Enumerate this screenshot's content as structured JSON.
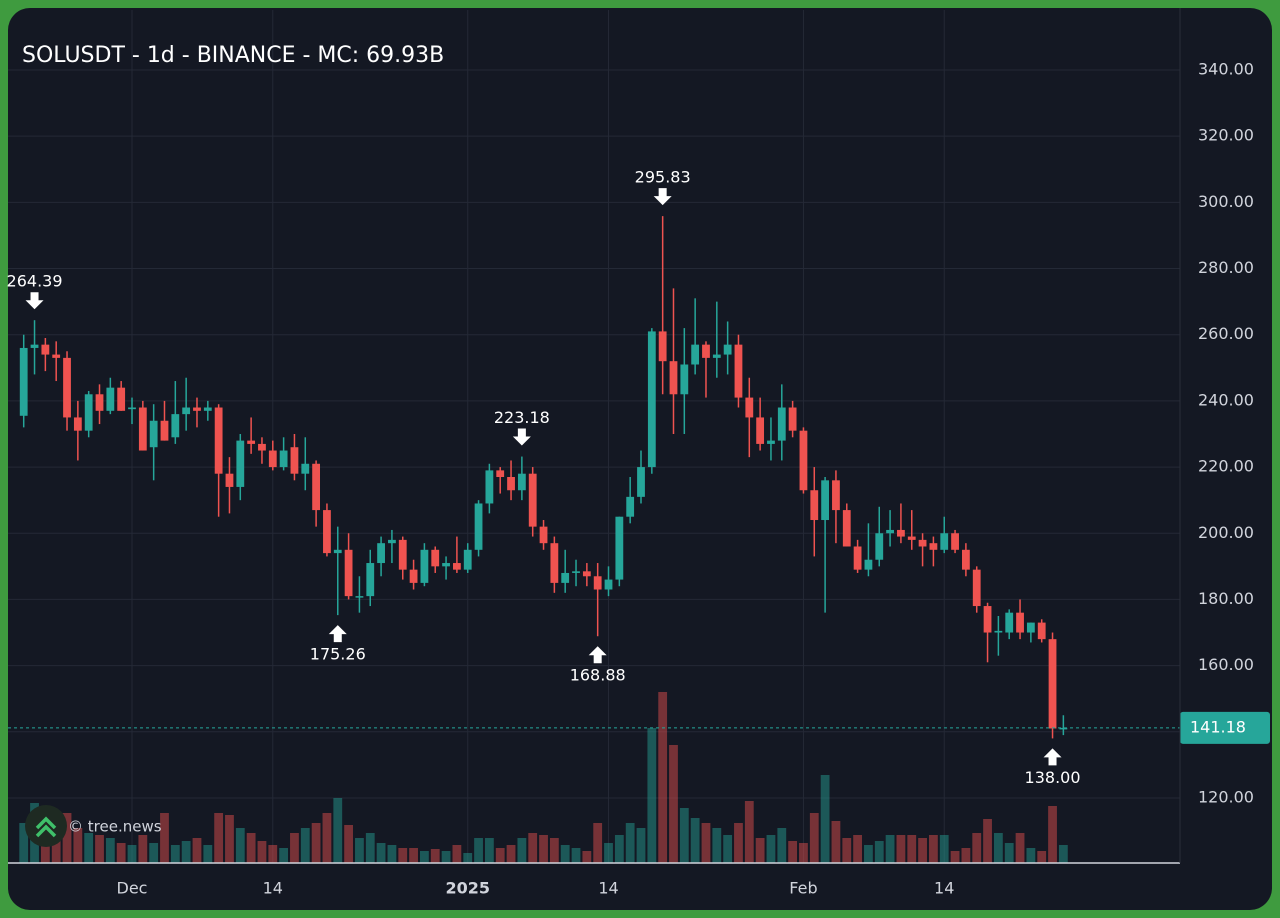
{
  "chart_data": {
    "type": "candlestick",
    "title": "SOLUSDT - 1d - BINANCE - MC: 69.93B",
    "watermark": "© tree.news",
    "up_color": "#26a69a",
    "down_color": "#ef5350",
    "grid": true,
    "xlim": [
      -1.45,
      106.77
    ],
    "ylim": [
      100.35,
      358.13
    ],
    "xticks": [
      {
        "value": 10,
        "label": "Dec"
      },
      {
        "value": 23,
        "label": "14"
      },
      {
        "value": 41,
        "label": "2025"
      },
      {
        "value": 54,
        "label": "14"
      },
      {
        "value": 72,
        "label": "Feb"
      },
      {
        "value": 85,
        "label": "14"
      }
    ],
    "yticks": [
      {
        "value": 120,
        "label": "120.00"
      },
      {
        "value": 140,
        "label": "140.00"
      },
      {
        "value": 160,
        "label": "160.00"
      },
      {
        "value": 180,
        "label": "180.00"
      },
      {
        "value": 200,
        "label": "200.00"
      },
      {
        "value": 220,
        "label": "220.00"
      },
      {
        "value": 240,
        "label": "240.00"
      },
      {
        "value": 260,
        "label": "260.00"
      },
      {
        "value": 280,
        "label": "280.00"
      },
      {
        "value": 300,
        "label": "300.00"
      },
      {
        "value": 320,
        "label": "320.00"
      },
      {
        "value": 340,
        "label": "340.00"
      }
    ],
    "open": [
      235.5,
      256,
      257,
      254,
      253,
      235,
      231,
      242,
      237,
      244,
      237.5,
      238,
      226,
      234,
      229,
      236,
      238,
      237,
      238,
      218,
      214,
      228,
      227,
      225,
      220,
      226,
      218,
      221,
      207,
      194,
      195,
      181,
      181,
      191,
      197,
      198,
      189,
      185,
      195,
      190,
      191,
      189,
      195,
      209,
      219,
      217,
      213,
      218,
      202,
      197,
      185,
      188,
      188.5,
      187,
      183,
      186,
      205,
      211,
      220,
      261,
      252,
      242,
      251,
      257,
      253,
      254,
      257,
      241,
      235,
      227,
      228,
      238,
      231,
      213,
      204,
      216,
      207,
      196,
      189,
      192,
      200,
      201,
      199,
      198,
      197,
      195,
      200,
      195,
      189,
      178,
      170,
      170,
      176,
      170,
      173,
      168,
      141
    ],
    "high": [
      260,
      264.39,
      259,
      258,
      255,
      240,
      243,
      245,
      247,
      246,
      241,
      240,
      239,
      240,
      246,
      247,
      241,
      240,
      239,
      223,
      230,
      235,
      229,
      228,
      229,
      230,
      229,
      222,
      209,
      202,
      200,
      187,
      195,
      199,
      201,
      199,
      192,
      197,
      196,
      193,
      199,
      197,
      210,
      221,
      220,
      222,
      223.18,
      220,
      204,
      199,
      195,
      192,
      191,
      191,
      190,
      205,
      217,
      225,
      262,
      295.83,
      274,
      262,
      271,
      258,
      270,
      264,
      260,
      247,
      241,
      235,
      245,
      240,
      232,
      220,
      217,
      219,
      209,
      198,
      203,
      208,
      207,
      209,
      207,
      200,
      199,
      205,
      201,
      197,
      190,
      179,
      175,
      177,
      180,
      173,
      174,
      170,
      145
    ],
    "low": [
      232,
      248,
      249,
      246,
      231,
      222,
      229,
      233,
      236,
      237,
      233,
      225,
      216,
      228,
      227,
      231,
      232,
      234,
      205,
      206,
      210,
      224,
      221,
      219,
      219,
      216,
      213,
      202,
      193,
      175.26,
      180,
      176,
      178,
      187,
      191,
      186,
      183,
      184,
      188,
      186,
      188,
      188,
      193,
      206,
      212,
      210,
      210,
      199,
      195,
      182,
      182,
      184,
      184,
      168.88,
      181,
      184,
      203,
      209,
      218,
      242,
      230,
      230,
      248,
      241,
      247,
      248,
      238,
      223,
      225,
      222,
      222,
      229,
      212,
      193,
      176,
      197,
      196,
      188,
      187,
      190,
      196,
      197,
      195,
      190,
      190,
      194,
      194,
      187,
      176,
      161,
      163,
      168,
      168,
      167,
      167,
      138,
      139
    ],
    "close": [
      256,
      257,
      254,
      253,
      235,
      231,
      242,
      237,
      244,
      237,
      238,
      225,
      234,
      228,
      236,
      238,
      237,
      238,
      218,
      214,
      228,
      227,
      225,
      220,
      225,
      218,
      221,
      207,
      194,
      195,
      181,
      181,
      191,
      197,
      198,
      189,
      185,
      195,
      190,
      191,
      189,
      195,
      209,
      219,
      217,
      213,
      218,
      202,
      197,
      185,
      188,
      188.5,
      187,
      183,
      186,
      205,
      211,
      220,
      261,
      252,
      242,
      251,
      257,
      253,
      254,
      257,
      241,
      235,
      227,
      228,
      238,
      231,
      213,
      204,
      216,
      207,
      196,
      189,
      192,
      200,
      201,
      199,
      198,
      196,
      195,
      200,
      195,
      189,
      178,
      170,
      170.5,
      176,
      170,
      173,
      168,
      141,
      141.18
    ],
    "volume": [
      40,
      60,
      45,
      40,
      50,
      35,
      30,
      28,
      25,
      20,
      18,
      28,
      20,
      50,
      18,
      22,
      25,
      18,
      50,
      48,
      35,
      30,
      22,
      18,
      15,
      30,
      35,
      40,
      50,
      65,
      38,
      25,
      30,
      20,
      18,
      15,
      15,
      12,
      14,
      12,
      18,
      10,
      25,
      25,
      15,
      18,
      25,
      30,
      28,
      25,
      18,
      15,
      12,
      40,
      20,
      28,
      40,
      35,
      135,
      171,
      118,
      55,
      45,
      40,
      35,
      28,
      40,
      62,
      25,
      28,
      35,
      22,
      20,
      50,
      88,
      42,
      25,
      28,
      18,
      22,
      28,
      28,
      28,
      25,
      28,
      28,
      12,
      15,
      30,
      44,
      30,
      20,
      30,
      15,
      12,
      57,
      18
    ],
    "extremes": [
      264.39,
      175.26,
      223.18,
      168.88,
      295.83,
      {
        "value": 138,
        "label": "138.00"
      }
    ]
  }
}
